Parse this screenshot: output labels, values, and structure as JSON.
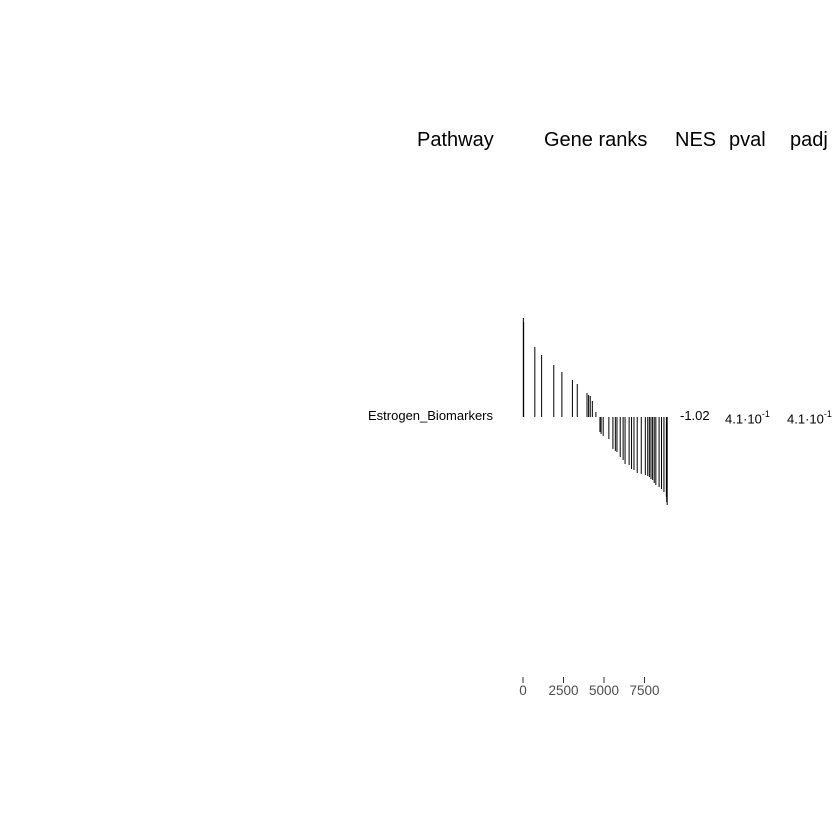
{
  "headers": {
    "pathway": "Pathway",
    "gene_ranks": "Gene ranks",
    "nes": "NES",
    "pval": "pval",
    "padj": "padj"
  },
  "row": {
    "pathway": "Estrogen_Biomarkers",
    "nes": "-1.02",
    "pval_mantissa": "4.1·10",
    "pval_exponent": "-1",
    "padj_mantissa": "4.1·10",
    "padj_exponent": "-1"
  },
  "chart_data": {
    "type": "bar",
    "title": "",
    "xlabel": "",
    "ylabel": "",
    "x_ticks": [
      0,
      2500,
      5000,
      7500
    ],
    "x_tick_labels": [
      "0",
      "2500",
      "5000",
      "7500"
    ],
    "xlim": [
      0,
      9000
    ],
    "bar_color": "#000000",
    "x": [
      20,
      40,
      730,
      1150,
      1900,
      2400,
      3050,
      3350,
      3950,
      4050,
      4150,
      4280,
      4500,
      4750,
      4820,
      4950,
      5300,
      5550,
      5700,
      5800,
      6000,
      6180,
      6300,
      6550,
      6700,
      6850,
      7050,
      7300,
      7550,
      7700,
      7800,
      7900,
      8000,
      8100,
      8200,
      8400,
      8550,
      8700,
      8850,
      8870,
      8900
    ],
    "values": [
      0.99,
      0.95,
      0.7,
      0.62,
      0.52,
      0.45,
      0.37,
      0.33,
      0.24,
      0.22,
      0.21,
      0.16,
      0.05,
      -0.15,
      -0.17,
      -0.19,
      -0.22,
      -0.32,
      -0.34,
      -0.35,
      -0.4,
      -0.43,
      -0.47,
      -0.48,
      -0.52,
      -0.53,
      -0.56,
      -0.57,
      -0.58,
      -0.59,
      -0.6,
      -0.62,
      -0.63,
      -0.66,
      -0.68,
      -0.7,
      -0.72,
      -0.75,
      -0.8,
      -0.85,
      -0.88
    ]
  }
}
